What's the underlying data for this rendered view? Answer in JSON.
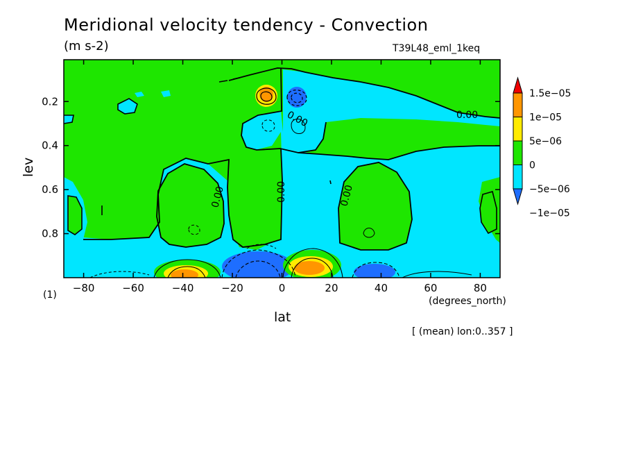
{
  "chart_data": {
    "type": "heatmap",
    "subtype": "filled contour",
    "title": "Meridional velocity tendency - Convection",
    "units": "(m s-2)",
    "run_label": "T39L48_eml_1keq",
    "xlabel": "lat",
    "xunits": "(degrees_north)",
    "ylabel": "lev",
    "yunits": "(1)",
    "averaging_note": "[ (mean) lon:0..357 ]",
    "xlim": [
      -88,
      88
    ],
    "ylim": [
      1.0,
      0.01
    ],
    "y_axis_inverted": true,
    "x_ticks": [
      -80,
      -60,
      -40,
      -20,
      0,
      20,
      40,
      60,
      80
    ],
    "x_tick_labels": [
      "−80",
      "−60",
      "−40",
      "−20",
      "0",
      "20",
      "40",
      "60",
      "80"
    ],
    "y_ticks": [
      0.2,
      0.4,
      0.6,
      0.8
    ],
    "y_tick_labels": [
      "0.2",
      "0.4",
      "0.6",
      "0.8"
    ],
    "contour_labels": [
      "0.00",
      "0.00",
      "0.00",
      "0.00",
      "0.00"
    ],
    "colorbar": {
      "levels": [
        -1e-05,
        -5e-06,
        0,
        5e-06,
        1e-05,
        1.5e-05
      ],
      "tick_labels": [
        "−1e−05",
        "−5e−06",
        "0",
        "5e−06",
        "1e−05",
        "1.5e−05"
      ],
      "colors": [
        "#1e6eff",
        "#00e6ff",
        "#1ee600",
        "#ffeb00",
        "#ff9600",
        "#f00000"
      ]
    },
    "features": [
      {
        "lat": -38,
        "lev": 0.97,
        "value": 1.2e-05
      },
      {
        "lat": -8,
        "lev": 0.96,
        "value": -1.2e-05
      },
      {
        "lat": 10,
        "lev": 0.94,
        "value": 1.3e-05
      },
      {
        "lat": 37,
        "lev": 0.97,
        "value": -1.1e-05
      },
      {
        "lat": -5,
        "lev": 0.16,
        "value": 1.2e-05
      },
      {
        "lat": 6,
        "lev": 0.16,
        "value": -1.1e-05
      }
    ],
    "grid": false
  }
}
